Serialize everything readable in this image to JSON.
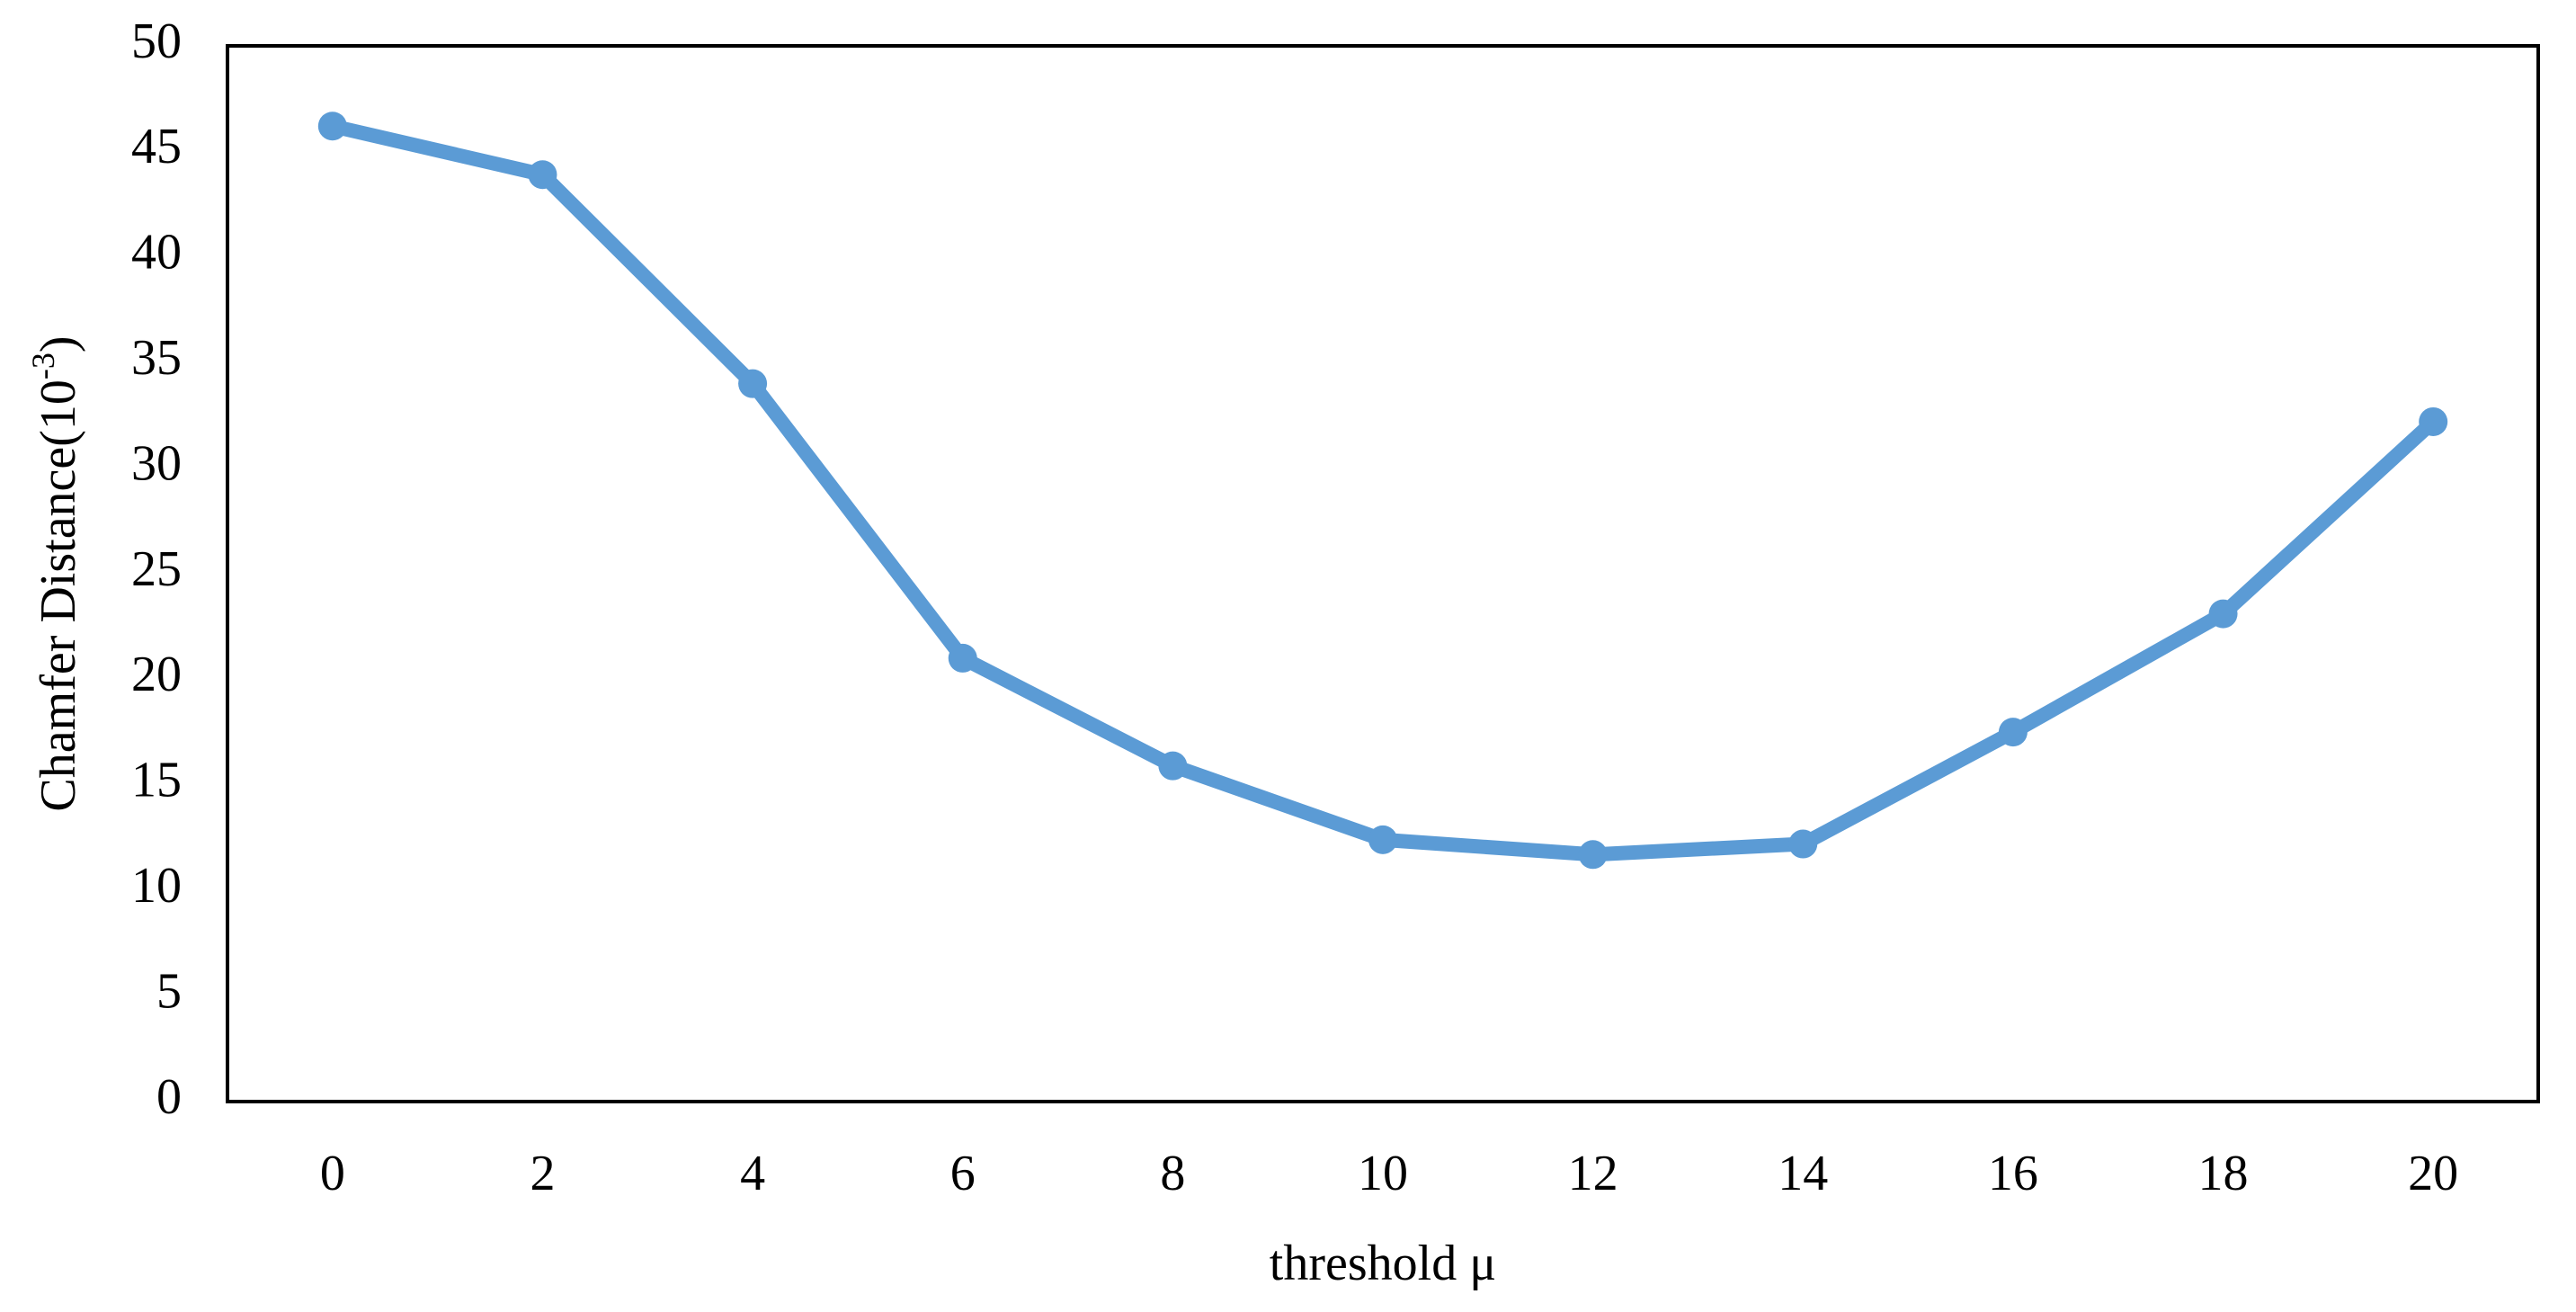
{
  "chart_data": {
    "type": "line",
    "x_label": "threshold μ",
    "y_label": "Chamfer  Distance(10",
    "y_label_sup": "-3",
    "y_label_end": ")",
    "categories": [
      "0",
      "2",
      "4",
      "6",
      "8",
      "10",
      "12",
      "14",
      "16",
      "18",
      "20"
    ],
    "series": [
      {
        "color": "#5b9bd5",
        "values": [
          46.2,
          43.9,
          34,
          21,
          15.9,
          12.4,
          11.7,
          12.2,
          17.5,
          23.1,
          32.2
        ]
      }
    ],
    "ylim": [
      0,
      50
    ],
    "yticks": [
      0,
      5,
      10,
      15,
      20,
      25,
      30,
      35,
      40,
      45,
      50
    ],
    "grid": false
  }
}
